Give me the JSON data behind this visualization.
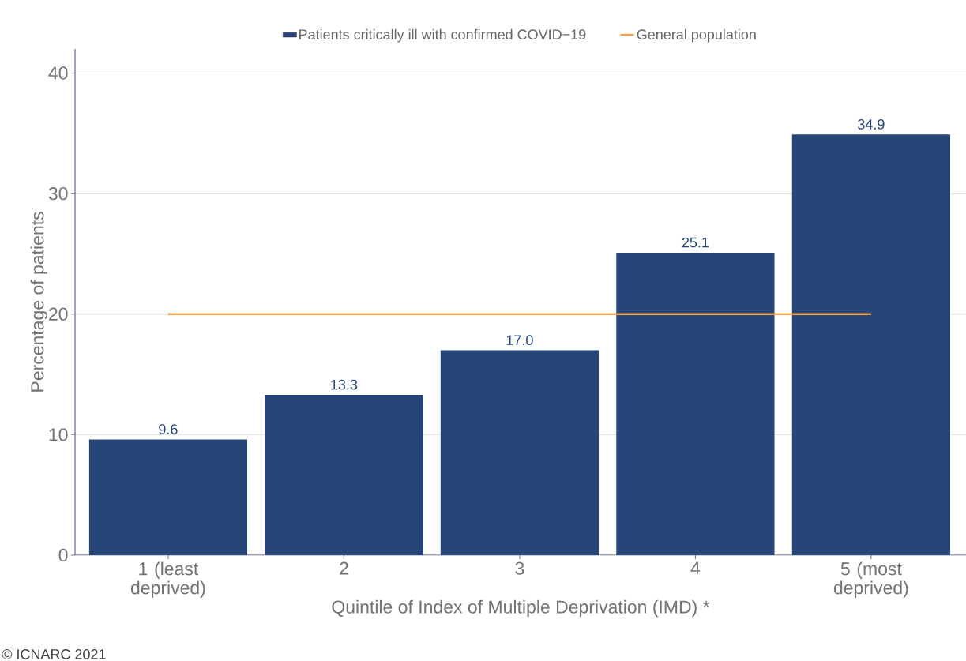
{
  "chart_data": {
    "type": "bar",
    "categories": [
      "1 (least deprived)",
      "2",
      "3",
      "4",
      "5 (most deprived)"
    ],
    "series": [
      {
        "name": "Patients critically ill with confirmed COVID−19",
        "type": "bar",
        "color": "#26467a",
        "values": [
          9.6,
          13.3,
          17.0,
          25.1,
          34.9
        ],
        "value_labels": [
          "9.6",
          "13.3",
          "17.0",
          "25.1",
          "34.9"
        ]
      },
      {
        "name": "General population",
        "type": "line",
        "color": "#f5a04b",
        "values": [
          20,
          20,
          20,
          20,
          20
        ]
      }
    ],
    "xlabel": "Quintile of Index of Multiple Deprivation (IMD) *",
    "ylabel": "Percentage of patients",
    "ylim": [
      0,
      42
    ],
    "yticks": [
      0,
      10,
      20,
      30,
      40
    ],
    "grid": "y",
    "legend": "top",
    "annotations": [
      "© ICNARC 2021"
    ]
  }
}
